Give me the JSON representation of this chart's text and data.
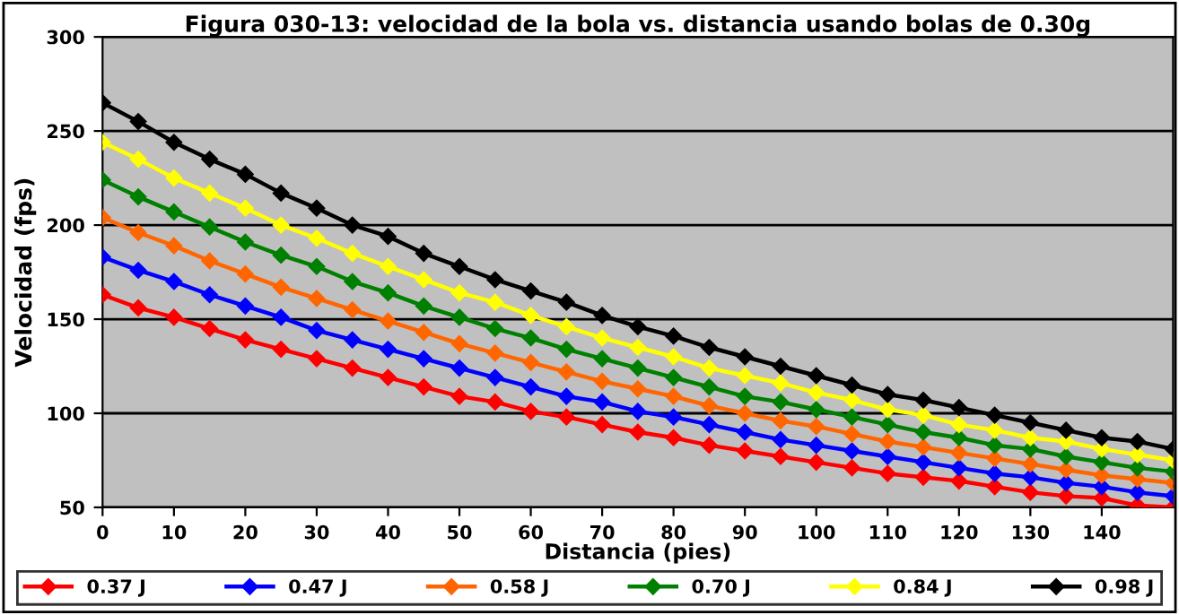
{
  "chart_data": {
    "type": "line",
    "title": "Figura 030-13: velocidad de la bola vs. distancia usando bolas de 0.30g",
    "xlabel": "Distancia (pies)",
    "ylabel": "Velocidad (fps)",
    "x": [
      0,
      5,
      10,
      15,
      20,
      25,
      30,
      35,
      40,
      45,
      50,
      55,
      60,
      65,
      70,
      75,
      80,
      85,
      90,
      95,
      100,
      105,
      110,
      115,
      120,
      125,
      130,
      135,
      140,
      145,
      150
    ],
    "xlim": [
      0,
      150
    ],
    "xticks": [
      0,
      10,
      20,
      30,
      40,
      50,
      60,
      70,
      80,
      90,
      100,
      110,
      120,
      130,
      140
    ],
    "ylim": [
      50,
      300
    ],
    "yticks": [
      50,
      100,
      150,
      200,
      250,
      300
    ],
    "grid": "y",
    "legend": "bottom",
    "marker": "diamond",
    "line_style": "solid",
    "series": [
      {
        "name": "0.37 J",
        "color": "#ff0000",
        "values": [
          163,
          156,
          151,
          145,
          139,
          134,
          129,
          124,
          119,
          114,
          109,
          106,
          101,
          98,
          94,
          90,
          87,
          83,
          80,
          77,
          74,
          71,
          68,
          66,
          64,
          61,
          58,
          56,
          55,
          51,
          50
        ]
      },
      {
        "name": "0.47 J",
        "color": "#0000ff",
        "values": [
          183,
          176,
          170,
          163,
          157,
          151,
          144,
          139,
          134,
          129,
          124,
          119,
          114,
          109,
          106,
          101,
          98,
          94,
          90,
          86,
          83,
          80,
          77,
          74,
          71,
          68,
          66,
          63,
          61,
          58,
          56
        ]
      },
      {
        "name": "0.58 J",
        "color": "#ff6600",
        "values": [
          204,
          196,
          189,
          181,
          174,
          167,
          161,
          155,
          149,
          143,
          137,
          132,
          127,
          122,
          117,
          113,
          109,
          104,
          100,
          96,
          93,
          89,
          85,
          82,
          79,
          76,
          73,
          70,
          67,
          65,
          63
        ]
      },
      {
        "name": "0.70 J",
        "color": "#008000",
        "values": [
          224,
          215,
          207,
          199,
          191,
          184,
          178,
          170,
          164,
          157,
          151,
          145,
          140,
          134,
          129,
          124,
          119,
          114,
          109,
          106,
          102,
          98,
          94,
          90,
          87,
          83,
          81,
          77,
          74,
          71,
          69
        ]
      },
      {
        "name": "0.84 J",
        "color": "#ffff00",
        "values": [
          244,
          235,
          225,
          217,
          209,
          200,
          193,
          185,
          178,
          171,
          164,
          159,
          152,
          146,
          140,
          135,
          130,
          124,
          120,
          116,
          111,
          107,
          102,
          99,
          94,
          91,
          87,
          85,
          81,
          78,
          75
        ]
      },
      {
        "name": "0.98 J",
        "color": "#000000",
        "values": [
          265,
          255,
          244,
          235,
          227,
          217,
          209,
          200,
          194,
          185,
          178,
          171,
          165,
          159,
          152,
          146,
          141,
          135,
          130,
          125,
          120,
          115,
          110,
          107,
          103,
          99,
          95,
          91,
          87,
          85,
          81
        ]
      }
    ]
  }
}
